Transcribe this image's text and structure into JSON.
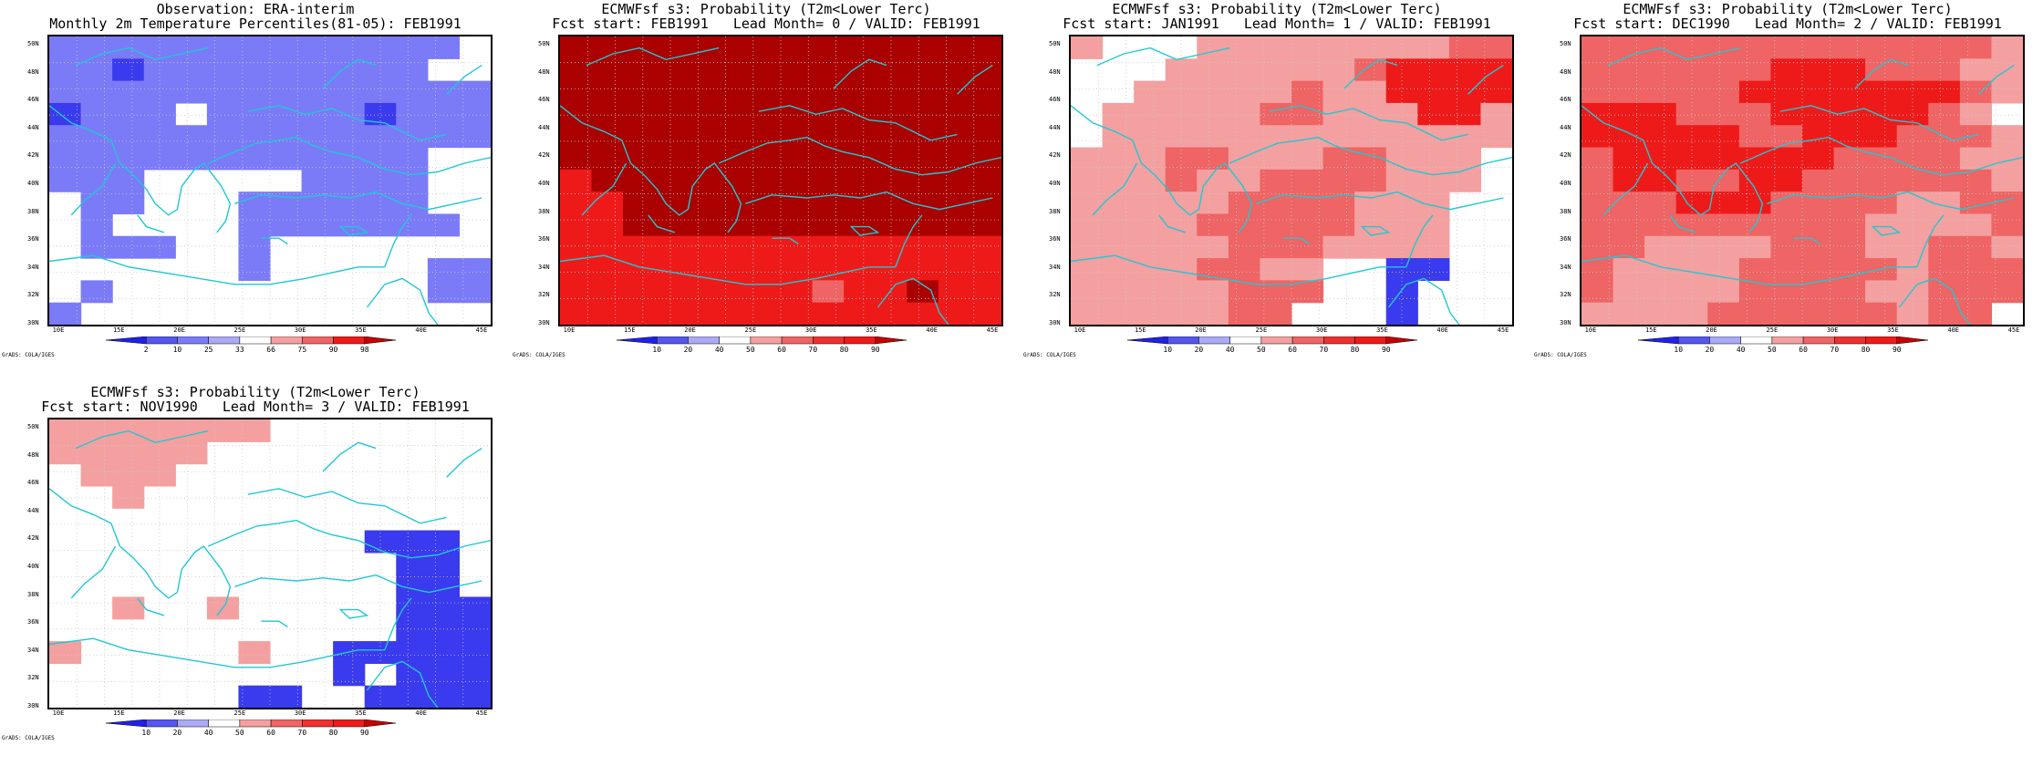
{
  "panels": [
    {
      "id": "obs",
      "title1": "Observation: ERA-interim",
      "title2": "Monthly 2m Temperature Percentiles(81-05): FEB1991",
      "cbar": "obs",
      "grid": [
        "LLLLLLLLLLLLLW",
        "LLMLLLLLLLLLWW",
        "LLLLLLLLLLLLLL",
        "MLLLWLLLLLMLLL",
        "LLLLLLLLLLLLLL",
        "LLLLLLLLLLLLWW",
        "LLLWWWWWLLLLWW",
        "WLLWWWLLLLLLWW",
        "WLWWWWLLLLLLLW",
        "WLLLWWLWWWWWWW",
        "WWWWWWLWWWWWLL",
        "WLWWWWWWWWWWLL",
        "LWWWWWWWWWWWWW"
      ]
    },
    {
      "id": "lead0",
      "title1": "ECMWFsf s3: Probability (T2m<Lower Terc)",
      "title2": "Fcst start: FEB1991   Lead Month= 0 / VALID: FEB1991",
      "cbar": "prob",
      "grid": [
        "CCCCCCCCCCCCCC",
        "CCCCCCCCCCCCCC",
        "CCCCCCCCCCCCCC",
        "CCCCCCCCCCCCCC",
        "CCCCCCCCCCCCCC",
        "CCCCCCCCCCCCCC",
        "RCCCCCCCCCCCCC",
        "RRCCCCCCCCCCCC",
        "RRCCCCCCCCCCCC",
        "RRRRRRRRRRRRRR",
        "RRRRRRRRRRRRRR",
        "RRRRRRRRGRRCRR",
        "RRRRRRRRRRRRRR"
      ]
    },
    {
      "id": "lead1",
      "title1": "ECMWFsf s3: Probability (T2m<Lower Terc)",
      "title2": "Fcst start: JAN1991   Lead Month= 1 / VALID: FEB1991",
      "cbar": "prob",
      "grid": [
        "PWWWPPPPPPPPGG",
        "WWWPPPPPPGRRRR",
        "WWPPPPPGPPRRRR",
        "WPPPPPGGPPPRRP",
        "WPPPPPPPPPPPPP",
        "PPPGGPPPGGPPPW",
        "PPPGPPGGGGPPPW",
        "PPPPPGGGGPPPWW",
        "PPPPGGGGGPPPWW",
        "PPPPPGGGPPPPWW",
        "PPPPGGPPWWBBWW",
        "PPPPPGGGWWBWWW",
        "PPPPPGGWWWBWWW"
      ]
    },
    {
      "id": "lead2",
      "title1": "ECMWFsf s3: Probability (T2m<Lower Terc)",
      "title2": "Fcst start: DEC1990   Lead Month= 2 / VALID: FEB1991",
      "cbar": "prob",
      "grid": [
        "GGGGGGGGGGGGGP",
        "GGGGGGRRRGGGPP",
        "GGGGGRRRRRRRGP",
        "RRRGGGRRRRRGPW",
        "RRRRRGGRRRGGGP",
        "GRRRRRRRGGGGPP",
        "GRRGGRRGGGGGGP",
        "GGGRRRGGGGPPGG",
        "GGGGGGGGGPPPPG",
        "GGPPPPGGGPPGGP",
        "GPPPPGGGGGPGGG",
        "GPPPPGGGGPPGGG",
        "PPPPGGGGGGPGGW"
      ]
    },
    {
      "id": "lead3",
      "title1": "ECMWFsf s3: Probability (T2m<Lower Terc)",
      "title2": "Fcst start: NOV1990   Lead Month= 3 / VALID: FEB1991",
      "cbar": "prob",
      "grid": [
        "PPPPPPPWWWWWWW",
        "PPPPPWWWWWWWWW",
        "WPPPWWWWWWWWWW",
        "WWPWWWWWWWWWWW",
        "WWWWWWWWWWWWWW",
        "WWWWWWWWWWBBBW",
        "WWWWWWWWWWWBBW",
        "WWWWWWWWWWWBBW",
        "WWPWWPWWWWWBBB",
        "WWWWWWWWWWWBBB",
        "PWWWWWPWWBBBBB",
        "WWWWWWWWWBWBBB",
        "WWWWWWBBWWBBBB"
      ]
    }
  ],
  "axes": {
    "lat_labels": [
      "50N",
      "48N",
      "46N",
      "44N",
      "42N",
      "40N",
      "38N",
      "36N",
      "34N",
      "32N",
      "30N"
    ],
    "lon_labels": [
      "10E",
      "15E",
      "20E",
      "25E",
      "30E",
      "35E",
      "40E",
      "45E"
    ],
    "obs_cbar_labels": [
      "2",
      "10",
      "25",
      "33",
      "66",
      "75",
      "90",
      "98"
    ],
    "prob_cbar_labels": [
      "10",
      "20",
      "40",
      "50",
      "60",
      "70",
      "80",
      "90"
    ]
  },
  "credit": "GrADS: COLA/IGES",
  "colors": {
    "W": "#ffffff",
    "L": "#7b7bf8",
    "M": "#3a3aee",
    "N": "#aaaaf6",
    "P": "#f4a0a0",
    "G": "#ef6464",
    "R": "#ee1a1a",
    "C": "#aa0000",
    "B": "#3a3aee",
    "coast": "#20c8d2",
    "grid": "#c8c8c8"
  }
}
